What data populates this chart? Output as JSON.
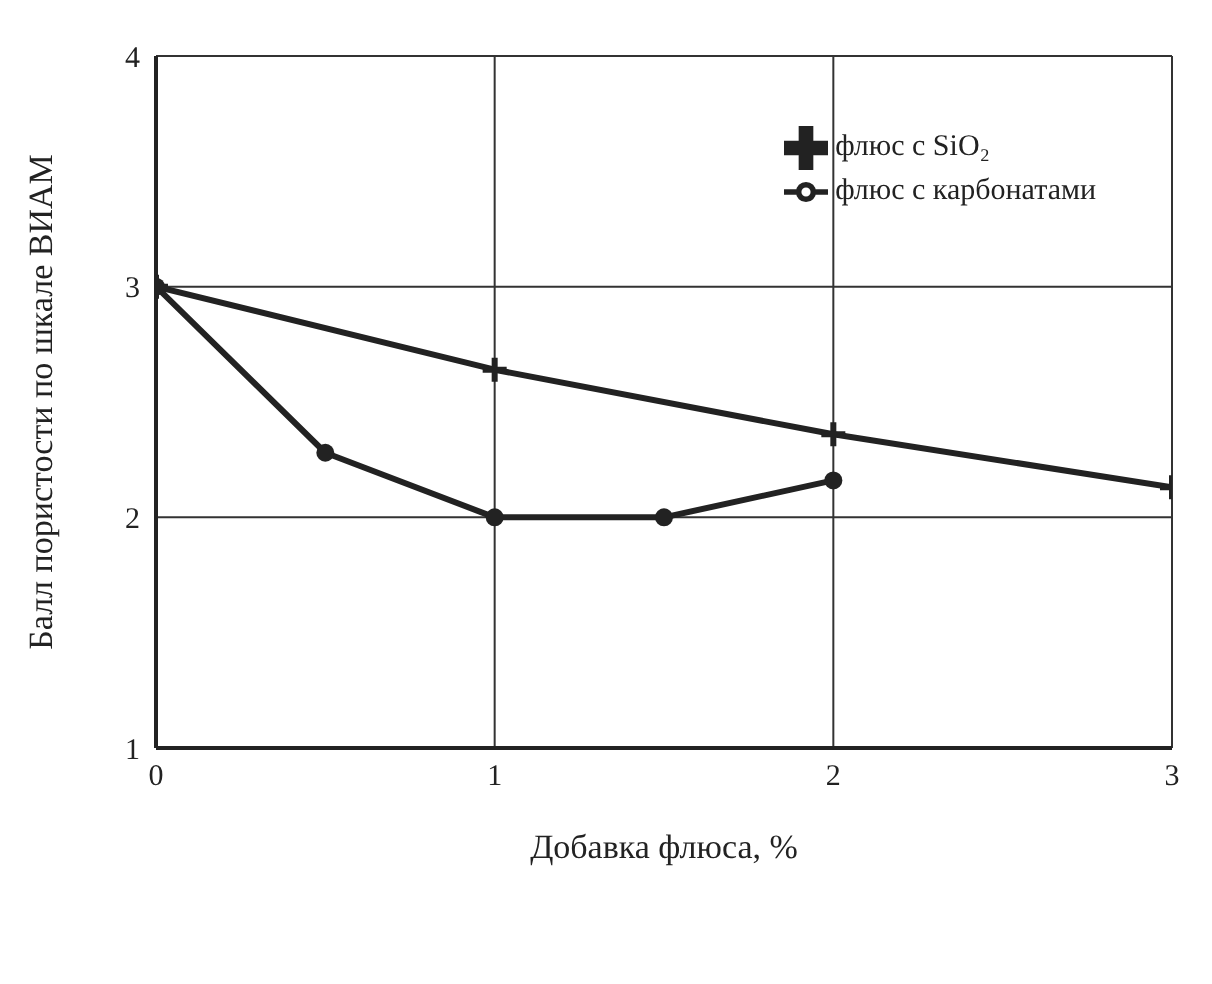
{
  "chart_data": {
    "type": "line",
    "xlabel": "Добавка флюса, %",
    "ylabel": "Балл пористости по шкале ВИАМ",
    "xlim": [
      0,
      3
    ],
    "xticks": [
      0,
      1,
      2,
      3
    ],
    "ylim": [
      1,
      4
    ],
    "yticks": [
      1,
      2,
      3,
      4
    ],
    "grid": true,
    "legend": "top right",
    "line_style": "solid",
    "series": [
      {
        "name": "флюс с карбонатами",
        "color": "#222222",
        "marker": "circle",
        "x": [
          0,
          0.5,
          1,
          1.5,
          2
        ],
        "values": [
          3,
          2.28,
          2,
          2,
          2.16
        ]
      },
      {
        "name": "флюс с SiO₂",
        "color": "#222222",
        "marker": "cross",
        "x": [
          0,
          1,
          2,
          3
        ],
        "values": [
          3,
          2.64,
          2.36,
          2.13
        ]
      }
    ]
  }
}
